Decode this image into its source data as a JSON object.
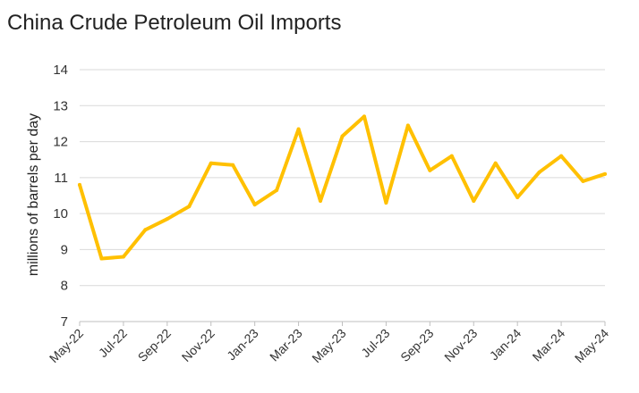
{
  "chart_data": {
    "type": "line",
    "title": "China Crude Petroleum Oil Imports",
    "xlabel": "",
    "ylabel": "millions of barrels per day",
    "ylim": [
      7,
      14
    ],
    "yticks": [
      7,
      8,
      9,
      10,
      11,
      12,
      13,
      14
    ],
    "grid": true,
    "legend": "none",
    "x": [
      "May-22",
      "Jun-22",
      "Jul-22",
      "Aug-22",
      "Sep-22",
      "Oct-22",
      "Nov-22",
      "Dec-22",
      "Jan-23",
      "Feb-23",
      "Mar-23",
      "Apr-23",
      "May-23",
      "Jun-23",
      "Jul-23",
      "Aug-23",
      "Sep-23",
      "Oct-23",
      "Nov-23",
      "Dec-23",
      "Jan-24",
      "Feb-24",
      "Mar-24",
      "Apr-24",
      "May-24"
    ],
    "x_tick_labels": [
      "May-22",
      "Jul-22",
      "Sep-22",
      "Nov-22",
      "Jan-23",
      "Mar-23",
      "May-23",
      "Jul-23",
      "Sep-23",
      "Nov-23",
      "Jan-24",
      "Mar-24",
      "May-24"
    ],
    "series": [
      {
        "color": "#FFC000",
        "values": [
          10.8,
          8.75,
          8.8,
          9.55,
          9.85,
          10.2,
          11.4,
          11.35,
          10.25,
          10.65,
          12.35,
          10.35,
          12.15,
          12.7,
          10.3,
          12.45,
          11.2,
          11.6,
          10.35,
          11.4,
          10.45,
          11.15,
          11.6,
          10.9,
          11.1
        ]
      }
    ]
  }
}
